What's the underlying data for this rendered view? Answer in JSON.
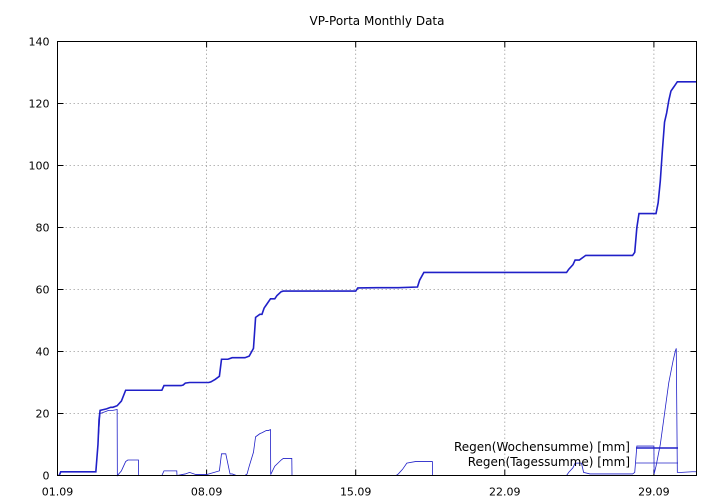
{
  "chart_data": {
    "type": "line",
    "title": "VP-Porta Monthly Data",
    "xlabel": "",
    "ylabel": "",
    "xlim": [
      1,
      31
    ],
    "ylim": [
      0,
      140
    ],
    "x_ticks": [
      {
        "x": 1,
        "label": "01.09"
      },
      {
        "x": 8,
        "label": "08.09"
      },
      {
        "x": 15,
        "label": "15.09"
      },
      {
        "x": 22,
        "label": "22.09"
      },
      {
        "x": 29,
        "label": "29.09"
      }
    ],
    "y_ticks": [
      0,
      20,
      40,
      60,
      80,
      100,
      120,
      140
    ],
    "grid": true,
    "legend_position": "bottom-right",
    "series": [
      {
        "name": "Regen(Wochensumme) [mm]",
        "color": "#2020c8",
        "stroke": "thick",
        "x": [
          1.1,
          1.15,
          2.8,
          2.9,
          2.95,
          3.0,
          3.3,
          3.5,
          3.6,
          3.8,
          4.0,
          4.2,
          5.9,
          6.0,
          6.8,
          6.9,
          7.0,
          7.2,
          7.4,
          7.8,
          8.0,
          8.1,
          8.2,
          8.4,
          8.6,
          8.7,
          9.0,
          9.2,
          9.4,
          9.8,
          10.0,
          10.2,
          10.25,
          10.3,
          10.5,
          10.6,
          10.7,
          10.8,
          11.0,
          11.2,
          11.3,
          11.5,
          11.6,
          12.5,
          13.5,
          14.5,
          15.0,
          15.1,
          16.0,
          17.0,
          17.9,
          18.0,
          18.2,
          19.0,
          20.0,
          21.0,
          22.0,
          23.0,
          24.0,
          24.9,
          25.0,
          25.2,
          25.3,
          25.5,
          25.8,
          26.0,
          27.0,
          28.0,
          28.1,
          28.2,
          28.3,
          29.0,
          29.1,
          29.2,
          29.3,
          29.4,
          29.5,
          29.6,
          29.7,
          29.8,
          29.9,
          30.0,
          30.1,
          30.2,
          30.3,
          30.4,
          30.5,
          30.6,
          30.8,
          31.0
        ],
        "y": [
          0.3,
          1.2,
          1.2,
          10,
          18,
          21,
          21.5,
          22,
          22,
          22.5,
          24,
          27.5,
          27.5,
          29,
          29,
          29.2,
          29.8,
          30,
          30,
          30,
          30,
          30,
          30.2,
          31,
          32,
          37.5,
          37.5,
          38,
          38,
          38,
          38.5,
          41,
          46,
          51,
          52,
          52,
          54,
          55,
          57,
          57,
          58,
          59.3,
          59.5,
          59.5,
          59.5,
          59.5,
          59.5,
          60.5,
          60.6,
          60.6,
          60.8,
          63,
          65.5,
          65.5,
          65.5,
          65.5,
          65.5,
          65.5,
          65.5,
          65.5,
          66.5,
          68,
          69.5,
          69.5,
          71,
          71,
          71,
          71,
          72,
          80,
          84.5,
          84.5,
          84.5,
          88,
          95,
          105,
          114,
          117,
          121,
          124,
          125,
          126,
          127,
          127,
          127,
          127,
          127,
          127,
          127,
          127
        ]
      },
      {
        "name": "Regen(Tagessumme) [mm]",
        "color": "#2020c8",
        "stroke": "thin",
        "x": [
          1.0,
          1.1,
          1.15,
          2.8,
          2.9,
          3.0,
          3.2,
          3.4,
          3.6,
          3.8,
          3.81,
          4.0,
          4.2,
          4.3,
          4.8,
          4.81,
          5.0,
          5.5,
          5.9,
          6.0,
          6.6,
          6.61,
          7.0,
          7.2,
          7.5,
          7.9,
          8.0,
          8.1,
          8.6,
          8.7,
          8.9,
          9.1,
          9.2,
          9.4,
          9.8,
          9.9,
          10.0,
          10.2,
          10.3,
          10.5,
          10.6,
          10.8,
          10.9,
          11.0,
          11.01,
          11.2,
          11.5,
          11.6,
          12.0,
          12.01,
          12.5,
          14.0,
          16.9,
          17.0,
          17.2,
          17.4,
          17.8,
          17.9,
          18.0,
          18.1,
          18.6,
          18.61,
          24.9,
          25.0,
          25.2,
          25.3,
          25.6,
          25.7,
          26.0,
          28.0,
          28.1,
          28.2,
          28.3,
          28.5,
          28.8,
          29.0,
          29.01,
          29.1,
          29.3,
          29.5,
          29.7,
          29.9,
          30.0,
          30.05,
          30.1,
          30.3,
          30.8,
          31.0
        ],
        "y": [
          0,
          0.3,
          1.2,
          1.2,
          10,
          20,
          20.5,
          21,
          21,
          21.3,
          0,
          1.5,
          4.5,
          5,
          5,
          0,
          0,
          0,
          0,
          1.5,
          1.5,
          0,
          0.5,
          1,
          0.3,
          0.3,
          0.3,
          0.5,
          1.5,
          7,
          7,
          0.5,
          0.5,
          0,
          0,
          0.5,
          3,
          7.5,
          12.5,
          13.5,
          13.8,
          14.5,
          14.5,
          14.8,
          0.3,
          3,
          5,
          5.5,
          5.5,
          0,
          0,
          0,
          0,
          0.5,
          2,
          4,
          4.5,
          4.5,
          4.5,
          4.5,
          4.5,
          0,
          0,
          1,
          2.5,
          4,
          4,
          1,
          0.5,
          0.5,
          1,
          9.5,
          9.5,
          9.5,
          9.5,
          9.5,
          0.5,
          3,
          10,
          20,
          30,
          37,
          40,
          41,
          1,
          1,
          1.2,
          1.2
        ]
      }
    ]
  }
}
